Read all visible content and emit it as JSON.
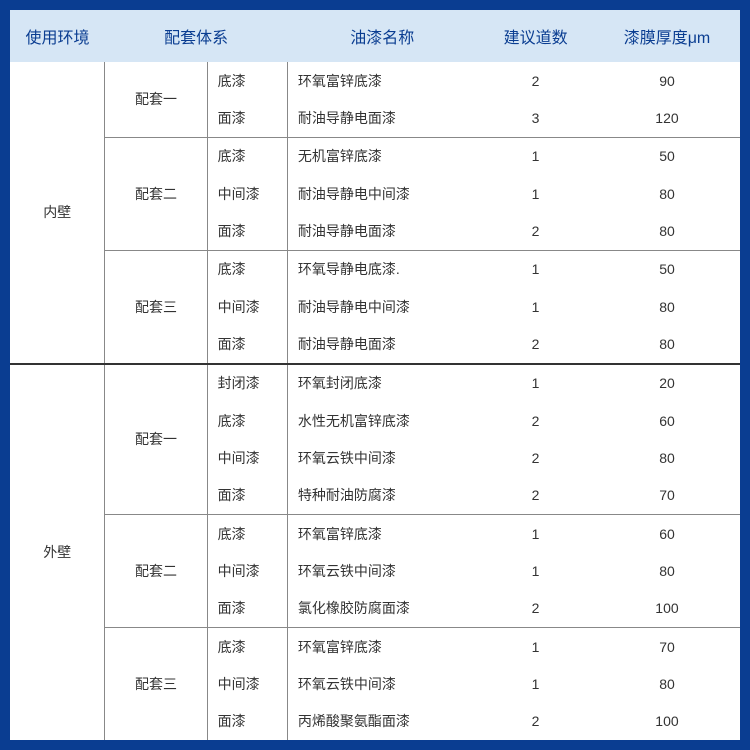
{
  "columns": [
    "使用环境",
    "配套体系",
    "油漆名称",
    "建议道数",
    "漆膜厚度μm"
  ],
  "column_widths_pct": [
    13,
    14,
    11,
    26,
    16,
    20
  ],
  "header_bg": "#d6e6f5",
  "header_fg": "#0a3d91",
  "page_bg": "#0a3d91",
  "table_bg": "#ffffff",
  "cell_fg": "#333333",
  "border_color_light": "#888888",
  "border_color_heavy": "#333333",
  "header_fontsize": 16,
  "cell_fontsize": 14,
  "environments": [
    {
      "env": "内壁",
      "systems": [
        {
          "sys": "配套一",
          "rows": [
            {
              "layer": "底漆",
              "name": "环氧富锌底漆",
              "coats": 2,
              "thickness": 90
            },
            {
              "layer": "面漆",
              "name": "耐油导静电面漆",
              "coats": 3,
              "thickness": 120
            }
          ]
        },
        {
          "sys": "配套二",
          "rows": [
            {
              "layer": "底漆",
              "name": "无机富锌底漆",
              "coats": 1,
              "thickness": 50
            },
            {
              "layer": "中间漆",
              "name": "耐油导静电中间漆",
              "coats": 1,
              "thickness": 80
            },
            {
              "layer": "面漆",
              "name": "耐油导静电面漆",
              "coats": 2,
              "thickness": 80
            }
          ]
        },
        {
          "sys": "配套三",
          "rows": [
            {
              "layer": "底漆",
              "name": "环氧导静电底漆.",
              "coats": 1,
              "thickness": 50
            },
            {
              "layer": "中间漆",
              "name": "耐油导静电中间漆",
              "coats": 1,
              "thickness": 80
            },
            {
              "layer": "面漆",
              "name": "耐油导静电面漆",
              "coats": 2,
              "thickness": 80
            }
          ]
        }
      ]
    },
    {
      "env": "外壁",
      "systems": [
        {
          "sys": "配套一",
          "rows": [
            {
              "layer": "封闭漆",
              "name": "环氧封闭底漆",
              "coats": 1,
              "thickness": 20
            },
            {
              "layer": "底漆",
              "name": "水性无机富锌底漆",
              "coats": 2,
              "thickness": 60
            },
            {
              "layer": "中间漆",
              "name": "环氧云铁中间漆",
              "coats": 2,
              "thickness": 80
            },
            {
              "layer": "面漆",
              "name": "特种耐油防腐漆",
              "coats": 2,
              "thickness": 70
            }
          ]
        },
        {
          "sys": "配套二",
          "rows": [
            {
              "layer": "底漆",
              "name": "环氧富锌底漆",
              "coats": 1,
              "thickness": 60
            },
            {
              "layer": "中间漆",
              "name": "环氧云铁中间漆",
              "coats": 1,
              "thickness": 80
            },
            {
              "layer": "面漆",
              "name": "氯化橡胶防腐面漆",
              "coats": 2,
              "thickness": 100
            }
          ]
        },
        {
          "sys": "配套三",
          "rows": [
            {
              "layer": "底漆",
              "name": "环氧富锌底漆",
              "coats": 1,
              "thickness": 70
            },
            {
              "layer": "中间漆",
              "name": "环氧云铁中间漆",
              "coats": 1,
              "thickness": 80
            },
            {
              "layer": "面漆",
              "name": "丙烯酸聚氨酯面漆",
              "coats": 2,
              "thickness": 100
            }
          ]
        }
      ]
    }
  ]
}
